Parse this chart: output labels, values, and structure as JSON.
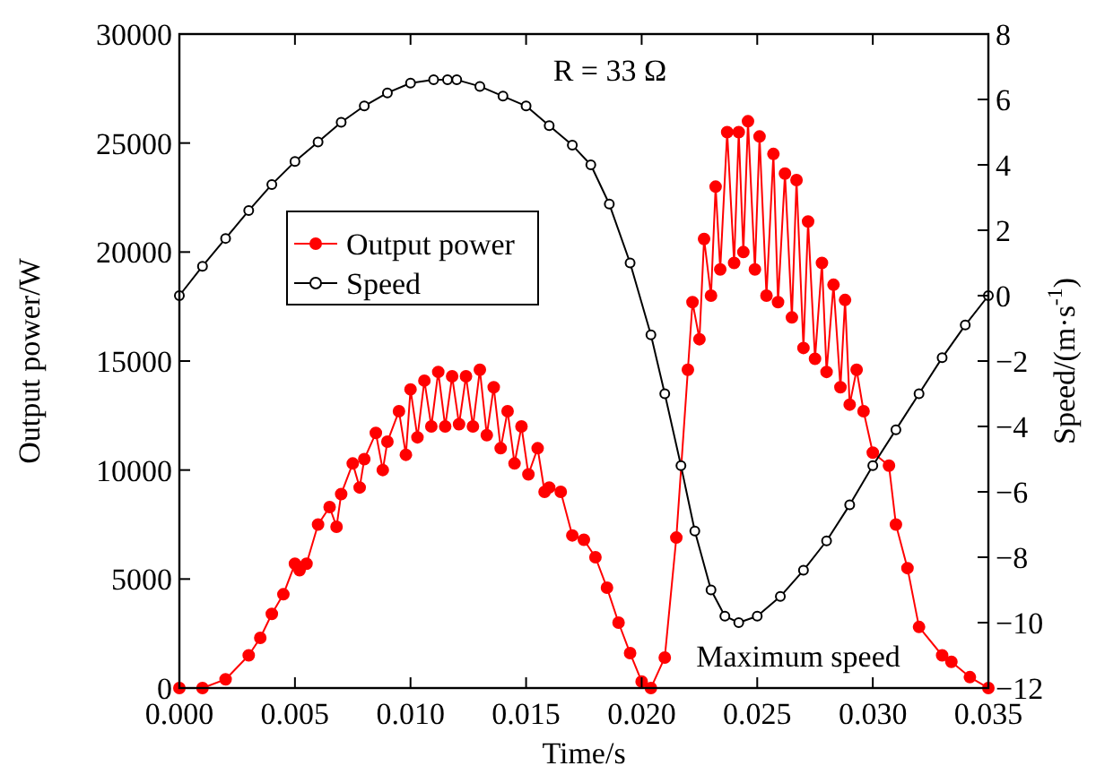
{
  "chart_data": {
    "type": "line",
    "xlabel": "Time/s",
    "ylabel": "Output power/W",
    "y2label": "Speed/(m·s$^{-1}$)",
    "annotations": [
      "R = 33 Ω",
      "Maximum speed"
    ],
    "xlim": [
      0,
      0.035
    ],
    "xticks": [
      {
        "value": 0,
        "label": "0.000"
      },
      0.005,
      {
        "value": 0.01,
        "label": "0.010"
      },
      0.015,
      {
        "value": 0.02,
        "label": "0.020"
      },
      0.025,
      {
        "value": 0.03,
        "label": "0.030"
      },
      0.035
    ],
    "ylim": [
      0,
      30000
    ],
    "yticks": [
      0,
      5000,
      10000,
      15000,
      20000,
      25000,
      30000
    ],
    "y2lim": [
      -12,
      8
    ],
    "y2ticks": [
      {
        "value": -12,
        "label": "−12"
      },
      {
        "value": -10,
        "label": "−10"
      },
      {
        "value": -8,
        "label": "−8"
      },
      {
        "value": -6,
        "label": "−6"
      },
      {
        "value": -4,
        "label": "−4"
      },
      {
        "value": -2,
        "label": "−2"
      },
      0,
      2,
      4,
      6,
      8
    ],
    "legend": "top",
    "grid": false,
    "series": [
      {
        "name": "Output power",
        "color": "#ff0000",
        "marker": "circle",
        "x": [
          0,
          0.001,
          0.002,
          0.003,
          0.0035,
          0.004,
          0.0045,
          0.005,
          0.0052,
          0.0055,
          0.006,
          0.0065,
          0.0068,
          0.007,
          0.0075,
          0.0078,
          0.008,
          0.0085,
          0.0088,
          0.009,
          0.0095,
          0.0098,
          0.01,
          0.0103,
          0.0106,
          0.0109,
          0.0112,
          0.0115,
          0.0118,
          0.0121,
          0.0124,
          0.0127,
          0.013,
          0.0133,
          0.0136,
          0.0139,
          0.0142,
          0.0145,
          0.0148,
          0.0151,
          0.0155,
          0.0158,
          0.016,
          0.0165,
          0.017,
          0.0175,
          0.018,
          0.0185,
          0.019,
          0.0195,
          0.02,
          0.0204,
          0.021,
          0.0215,
          0.022,
          0.0222,
          0.0225,
          0.0227,
          0.023,
          0.0232,
          0.0234,
          0.0237,
          0.024,
          0.0242,
          0.0244,
          0.0246,
          0.0249,
          0.0251,
          0.0254,
          0.0257,
          0.0259,
          0.0262,
          0.0265,
          0.0267,
          0.027,
          0.0272,
          0.0275,
          0.0278,
          0.028,
          0.0283,
          0.0286,
          0.0288,
          0.029,
          0.0293,
          0.0296,
          0.03,
          0.0307,
          0.031,
          0.0315,
          0.032,
          0.033,
          0.0334,
          0.0342,
          0.035
        ],
        "values": [
          0,
          0,
          400,
          1500,
          2300,
          3400,
          4300,
          5700,
          5400,
          5700,
          7500,
          8300,
          7400,
          8900,
          10300,
          9200,
          10500,
          11700,
          10000,
          11300,
          12700,
          10700,
          13700,
          11500,
          14100,
          12000,
          14500,
          12000,
          14300,
          12100,
          14300,
          12000,
          14600,
          11600,
          13800,
          11000,
          12700,
          10300,
          12000,
          9800,
          11000,
          9000,
          9200,
          9000,
          7000,
          6800,
          6000,
          4600,
          3000,
          1600,
          300,
          0,
          1400,
          6900,
          14600,
          17700,
          16000,
          20600,
          18000,
          23000,
          19200,
          25500,
          19500,
          25500,
          20000,
          26000,
          19200,
          25300,
          18000,
          24500,
          17700,
          23600,
          17000,
          23300,
          15600,
          21400,
          15100,
          19500,
          14500,
          18500,
          13800,
          17800,
          13000,
          14600,
          12700,
          10800,
          10200,
          7500,
          5500,
          2800,
          1500,
          1200,
          500,
          0
        ]
      },
      {
        "name": "Speed",
        "color": "#000000",
        "marker": "circle",
        "axis": "y2",
        "x": [
          0,
          0.001,
          0.002,
          0.003,
          0.004,
          0.005,
          0.006,
          0.007,
          0.008,
          0.009,
          0.01,
          0.011,
          0.0116,
          0.012,
          0.013,
          0.014,
          0.015,
          0.016,
          0.017,
          0.0178,
          0.0186,
          0.0195,
          0.0204,
          0.021,
          0.0217,
          0.0223,
          0.023,
          0.0236,
          0.0242,
          0.025,
          0.026,
          0.027,
          0.028,
          0.029,
          0.03,
          0.031,
          0.032,
          0.033,
          0.034,
          0.035
        ],
        "values": [
          0,
          0.9,
          1.75,
          2.6,
          3.4,
          4.1,
          4.7,
          5.3,
          5.8,
          6.2,
          6.5,
          6.6,
          6.6,
          6.6,
          6.4,
          6.1,
          5.8,
          5.2,
          4.6,
          4,
          2.8,
          1,
          -1.2,
          -3,
          -5.2,
          -7.2,
          -9,
          -9.8,
          -10,
          -9.8,
          -9.2,
          -8.4,
          -7.5,
          -6.4,
          -5.2,
          -4.1,
          -3,
          -1.9,
          -0.9,
          0
        ]
      }
    ]
  }
}
